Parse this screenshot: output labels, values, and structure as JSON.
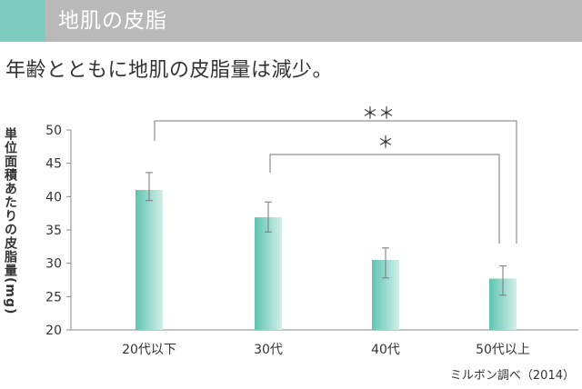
{
  "header": {
    "title": "地肌の皮脂"
  },
  "subtitle": "年齢とともに地肌の皮脂量は減少。",
  "source": "ミルボン調べ（2014）",
  "colors": {
    "bar_dark": "#5ec4b0",
    "bar_light": "#d3eee9",
    "header": "#b9b9b9",
    "accent": "#7fcbbf"
  },
  "chart_data": {
    "type": "bar",
    "ylabel": "単位面積あたりの皮脂量(mg)",
    "categories": [
      "20代以下",
      "30代",
      "40代",
      "50代以上"
    ],
    "values": [
      41.0,
      36.9,
      30.5,
      27.7
    ],
    "error": [
      [
        39.4,
        43.6
      ],
      [
        34.7,
        39.2
      ],
      [
        27.8,
        32.3
      ],
      [
        25.2,
        29.6
      ]
    ],
    "ylim": [
      20,
      50
    ],
    "yticks": [
      20,
      25,
      30,
      35,
      40,
      45,
      50
    ],
    "significance": [
      {
        "from": "20代以下",
        "to": "50代以上",
        "label": "＊＊"
      },
      {
        "from": "30代",
        "to": "50代以上",
        "label": "＊"
      }
    ]
  }
}
